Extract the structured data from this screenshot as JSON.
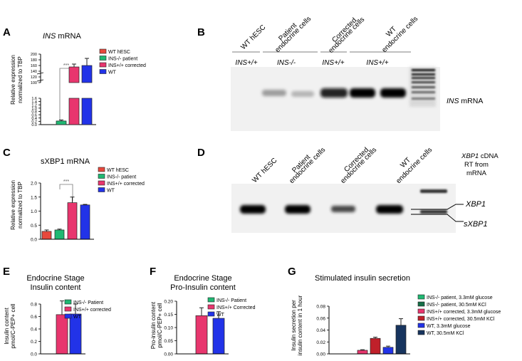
{
  "panels": {
    "A": {
      "letter": "A",
      "title_italic": "INS",
      "title_rest": " mRNA",
      "ylabel1": "Relative expression",
      "ylabel2": "normalized to TBP",
      "sig": "***"
    },
    "B": {
      "letter": "B",
      "lanes": [
        "WT hESC",
        "Patient",
        "endocrine cells",
        "Corrected",
        "endocrine cells",
        "WT",
        "endocrine cells"
      ],
      "genotypes": [
        "INS+/+",
        "INS-/-",
        "INS+/+",
        "INS+/+"
      ],
      "band_label_italic": "INS",
      "band_label_rest": " mRNA"
    },
    "C": {
      "letter": "C",
      "title": "sXBP1 mRNA",
      "ylabel1": "Relative expression",
      "ylabel2": "normalized to TBP",
      "sig": "***"
    },
    "D": {
      "letter": "D",
      "lanes": [
        "WT hESC",
        "Patient",
        "endocrine cells",
        "Corrected",
        "endocrine cells",
        "WT",
        "endocrine cells"
      ],
      "ladder_title_italic": "XBP1",
      "ladder_title_rest": " cDNA",
      "ladder_sub1": "RT from",
      "ladder_sub2": "mRNA",
      "band1": "XBP1",
      "band2": "sXBP1"
    },
    "E": {
      "letter": "E",
      "title1": "Endocrine Stage",
      "title2": "Insulin content",
      "ylabel1": "Insulin content",
      "ylabel2": "pmol/C-PEP+ cell"
    },
    "F": {
      "letter": "F",
      "title1": "Endocrine Stage",
      "title2": "Pro-Insulin content",
      "ylabel1": "Pro-insulin content",
      "ylabel2": "pmol/C-PEP+ cell"
    },
    "G": {
      "letter": "G",
      "title": "Stimulated insulin secretion",
      "ylabel1": "Insulin secretion per",
      "ylabel2": "insulin content in 1 hour"
    }
  },
  "chart_data": [
    {
      "id": "A",
      "type": "bar",
      "categories": [
        "WT hESC",
        "INS-/- patient",
        "INS+/+ corrected",
        "WT"
      ],
      "colors": [
        "#e8483c",
        "#1fb872",
        "#e8366e",
        "#2233e8"
      ],
      "values": [
        0.0,
        0.22,
        155,
        160
      ],
      "errors": [
        0,
        0.06,
        10,
        25
      ],
      "yticks_low": [
        "0.0",
        "0.2",
        "0.4",
        "0.6",
        "0.8",
        "1.0",
        "1.2",
        "1.4",
        "1.6"
      ],
      "yticks_high": [
        "100",
        "120",
        "140",
        "160",
        "180",
        "200"
      ],
      "ylim": [
        0,
        200
      ],
      "legend": [
        "WT hESC",
        "INS-/- patient",
        "INS+/+ corrected",
        "WT"
      ]
    },
    {
      "id": "C",
      "type": "bar",
      "categories": [
        "WT hESC",
        "INS-/- patient",
        "INS+/+ corrected",
        "WT"
      ],
      "colors": [
        "#e8483c",
        "#1fb872",
        "#e8366e",
        "#2233e8"
      ],
      "values": [
        0.28,
        0.33,
        1.3,
        1.22
      ],
      "errors": [
        0.05,
        0.03,
        0.2,
        0.02
      ],
      "yticks": [
        "0.0",
        "0.5",
        "1.0",
        "1.5",
        "2.0"
      ],
      "ylim": [
        0,
        2.0
      ],
      "legend": [
        "WT hESC",
        "INS-/- patient",
        "INS+/+ corrected",
        "WT"
      ]
    },
    {
      "id": "E",
      "type": "bar",
      "categories": [
        "INS-/- Patient",
        "INS+/+ corrected",
        "WT"
      ],
      "colors": [
        "#1fb872",
        "#e8366e",
        "#2233e8"
      ],
      "values": [
        0.0,
        0.63,
        0.64
      ],
      "errors": [
        0,
        0.22,
        0.16
      ],
      "yticks": [
        "0.0",
        "0.2",
        "0.4",
        "0.6",
        "0.8"
      ],
      "ylim": [
        0,
        0.8
      ],
      "legend": [
        "INS-/- Patient",
        "INS+/+ corrected",
        "WT"
      ]
    },
    {
      "id": "F",
      "type": "bar",
      "categories": [
        "INS-/- Patient",
        "INS+/+ Corrected",
        "WT"
      ],
      "colors": [
        "#1fb872",
        "#e8366e",
        "#2233e8"
      ],
      "values": [
        0.0,
        0.145,
        0.135
      ],
      "errors": [
        0,
        0.03,
        0.025
      ],
      "yticks": [
        "0.00",
        "0.05",
        "0.10",
        "0.15",
        "0.20"
      ],
      "ylim": [
        0,
        0.2
      ],
      "legend": [
        "INS-/- Patient",
        "INS+/+ Corrected",
        "WT"
      ]
    },
    {
      "id": "G",
      "type": "bar",
      "categories": [
        "INS-/- patient, 3.3mM glucose",
        "INS-/- patient, 30.5mM KCl",
        "INS+/+ corrected, 3.3mM glucose",
        "INS+/+ corrected, 30.5mM KCl",
        "WT, 3.3mM glucose",
        "WT, 30.5mM KCl"
      ],
      "colors": [
        "#1fb872",
        "#156e47",
        "#e8366e",
        "#c0202a",
        "#2233e8",
        "#17345e"
      ],
      "values": [
        0.0,
        0.0,
        0.006,
        0.026,
        0.011,
        0.048
      ],
      "errors": [
        0,
        0,
        0.001,
        0.002,
        0.002,
        0.011
      ],
      "yticks": [
        "0.00",
        "0.02",
        "0.04",
        "0.06",
        "0.08"
      ],
      "ylim": [
        0,
        0.08
      ],
      "legend": [
        "INS-/- patient, 3.3mM glucose",
        "INS-/- patient, 30.5mM KCl",
        "INS+/+ corrected, 3.3mM glucose",
        "INS+/+ corrected, 30.5mM KCl",
        "WT, 3.3mM glucose",
        "WT, 30.5mM KCl"
      ]
    }
  ]
}
